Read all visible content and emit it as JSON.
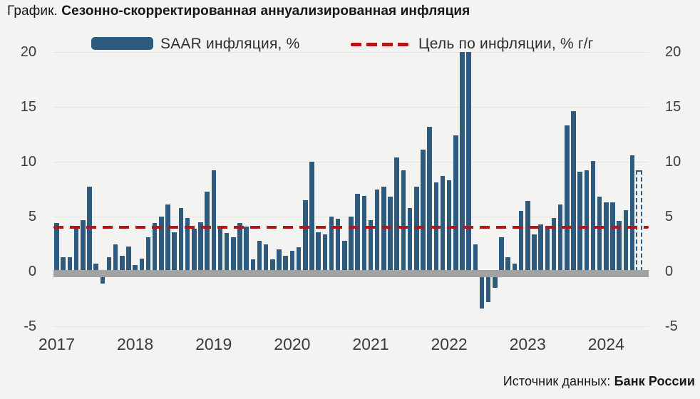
{
  "title": {
    "prefix": "График.",
    "main": "Сезонно-скорректированная аннуализированная инфляция"
  },
  "source": {
    "label": "Источник данных:",
    "value": "Банк России"
  },
  "chart_data": {
    "type": "bar",
    "unit": "%",
    "title": "Сезонно-скорректированная аннуализированная инфляция",
    "legend_position": "top",
    "grid": "horizontal",
    "legend": [
      {
        "kind": "bar-series",
        "label": "SAAR инфляция, %",
        "color": "#2d5a7d"
      },
      {
        "kind": "dashed-line",
        "label": "Цель по инфляции, % г/г",
        "color": "#b21615"
      }
    ],
    "target_value": 4,
    "ylim": [
      -5,
      20
    ],
    "yticks": [
      20,
      15,
      10,
      5,
      0,
      -5
    ],
    "x_years": [
      "2017",
      "2018",
      "2019",
      "2020",
      "2021",
      "2022",
      "2023",
      "2024"
    ],
    "monthly_values_saar": {
      "2017": [
        4.4,
        1.3,
        1.3,
        3.9,
        4.7,
        7.7,
        0.7,
        -1.1,
        1.3,
        2.5,
        1.4,
        2.3
      ],
      "2018": [
        0.6,
        1.2,
        3.1,
        4.4,
        5.0,
        6.1,
        3.6,
        5.8,
        4.9,
        3.9,
        4.5,
        7.3
      ],
      "2019": [
        9.2,
        3.9,
        3.5,
        3.1,
        4.4,
        4.1,
        1.1,
        2.8,
        2.5,
        1.1,
        2.0,
        1.4
      ],
      "2020": [
        1.9,
        2.2,
        6.5,
        10.0,
        3.6,
        3.4,
        5.0,
        4.8,
        2.8,
        5.0,
        7.1,
        6.9
      ],
      "2021": [
        4.7,
        7.5,
        7.7,
        6.8,
        10.4,
        9.2,
        5.8,
        7.7,
        11.1,
        13.2,
        8.1,
        8.7
      ],
      "2022": [
        8.3,
        12.4,
        20.0,
        20.0,
        2.5,
        -3.4,
        -2.8,
        -1.5,
        3.1,
        1.3,
        0.7,
        5.5
      ],
      "2023": [
        6.4,
        3.4,
        4.3,
        4.1,
        4.9,
        6.1,
        13.3,
        14.6,
        9.1,
        9.2,
        10.1,
        6.8
      ],
      "2024": [
        6.3,
        6.3,
        4.6,
        5.6,
        10.6,
        9.2
      ]
    },
    "last_bar_dashed": true,
    "last_bar_note": "dashed-outline-estimate",
    "colors": {
      "bar": "#2d5a7d",
      "target_line": "#b21615",
      "zero_axis": "#a2a2a0",
      "gridline": "#e4e4e1",
      "background": "#f3f3f1"
    }
  }
}
